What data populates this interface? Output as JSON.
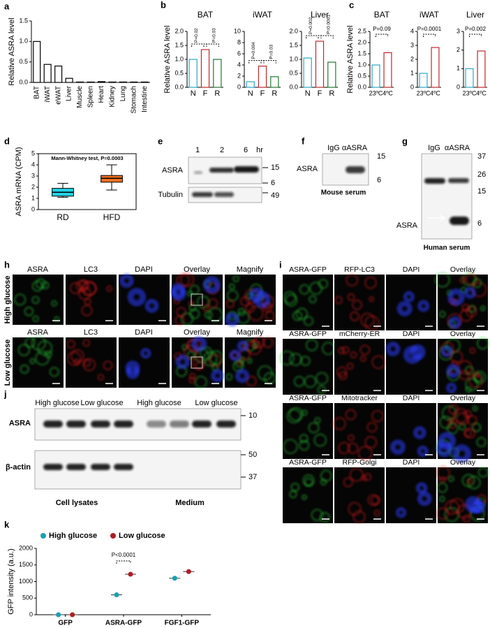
{
  "panel_labels": [
    "a",
    "b",
    "c",
    "d",
    "e",
    "f",
    "g",
    "h",
    "i",
    "j",
    "k"
  ],
  "chart_data": [
    {
      "type": "bar",
      "ylabel": "Relative ASRA level",
      "categories": [
        "BAT",
        "iWAT",
        "eWAT",
        "Liver",
        "Muscle",
        "Spleen",
        "Heart",
        "Kidney",
        "Lung",
        "Stomach",
        "Intestine"
      ],
      "values": [
        1.0,
        0.44,
        0.4,
        0.1,
        0.01,
        0.01,
        0.02,
        0.01,
        0.01,
        0.01,
        0.01
      ],
      "color": "#000000",
      "ylim": [
        0,
        1.5
      ],
      "yticks": [
        {
          "value": 0,
          "label": "0.0"
        },
        0.5,
        {
          "value": 1,
          "label": "1.0"
        },
        1.5
      ]
    },
    {
      "type": "bar",
      "title": "BAT",
      "ylabel": "Relative ASRA level",
      "categories": [
        "N",
        "F",
        "R"
      ],
      "values": [
        1.0,
        1.35,
        1.0
      ],
      "colors": [
        "#29a9c6",
        "#c0272d",
        "#1f7a2e"
      ],
      "ylim": [
        0,
        2
      ],
      "yticks": [
        {
          "value": 0,
          "label": "0.0"
        },
        0.5,
        {
          "value": 1,
          "label": "1.0"
        },
        1.5,
        {
          "value": 2,
          "label": "2.0"
        }
      ],
      "annotations": [
        "P=0.02",
        "P=0.03"
      ]
    },
    {
      "type": "bar",
      "title": "iWAT",
      "categories": [
        "N",
        "F",
        "R"
      ],
      "values": [
        1.0,
        3.8,
        1.9
      ],
      "colors": [
        "#29a9c6",
        "#c0272d",
        "#1f7a2e"
      ],
      "ylim": [
        0,
        10
      ],
      "yticks": [
        0,
        2,
        4,
        6,
        8,
        10
      ],
      "annotations": [
        "P=0.004",
        "P=0.03"
      ]
    },
    {
      "type": "bar",
      "title": "Liver",
      "categories": [
        "N",
        "F",
        "R"
      ],
      "values": [
        1.05,
        1.65,
        0.9
      ],
      "colors": [
        "#29a9c6",
        "#c0272d",
        "#1f7a2e"
      ],
      "ylim": [
        0,
        2
      ],
      "yticks": [
        {
          "value": 0,
          "label": "0.0"
        },
        0.5,
        {
          "value": 1,
          "label": "1.0"
        },
        1.5,
        {
          "value": 2,
          "label": "2.0"
        }
      ],
      "annotations": [
        "P=0.002",
        "P=0.0001"
      ]
    },
    {
      "type": "bar",
      "title": "BAT",
      "ylabel": "Relative ASRA level",
      "categories": [
        "23ºC",
        "4ºC"
      ],
      "values": [
        1.0,
        1.55
      ],
      "colors": [
        "#29a9c6",
        "#c0272d"
      ],
      "ylim": [
        0,
        2.5
      ],
      "yticks": [
        {
          "value": 0,
          "label": "0.0"
        },
        0.5,
        {
          "value": 1,
          "label": "1.0"
        },
        1.5,
        {
          "value": 2,
          "label": "2.0"
        },
        2.5
      ],
      "annotations": [
        "P=0.09"
      ]
    },
    {
      "type": "bar",
      "title": "iWAT",
      "categories": [
        "23ºC",
        "4ºC"
      ],
      "values": [
        1.0,
        2.85
      ],
      "colors": [
        "#29a9c6",
        "#c0272d"
      ],
      "ylim": [
        0,
        4
      ],
      "yticks": [
        0,
        1,
        2,
        3,
        4
      ],
      "annotations": [
        "P=0.0001"
      ]
    },
    {
      "type": "bar",
      "title": "Liver",
      "categories": [
        "23ºC",
        "4ºC"
      ],
      "values": [
        1.0,
        1.95
      ],
      "colors": [
        "#29a9c6",
        "#c0272d"
      ],
      "ylim": [
        0,
        3
      ],
      "yticks": [
        0,
        1,
        2,
        3
      ],
      "annotations": [
        "P=0.002"
      ]
    },
    {
      "type": "box",
      "ylabel": "ASRA mRNA  (CPM)",
      "annotation": "Mann-Whitney test, P=0.0003",
      "categories": [
        "RD",
        "HFD"
      ],
      "boxes": [
        {
          "min": 1.1,
          "q1": 1.2,
          "median": 1.55,
          "q3": 1.9,
          "max": 2.35
        },
        {
          "min": 1.75,
          "q1": 2.45,
          "median": 2.8,
          "q3": 3.05,
          "max": 4.0
        }
      ],
      "colors": [
        "#22d3e6",
        "#f07020"
      ],
      "ylim": [
        0,
        5
      ],
      "yticks": [
        0,
        1,
        2,
        3,
        4,
        5
      ]
    },
    {
      "type": "strip",
      "ylabel": "GFP intensity (a.u.)",
      "annotation": "P<0.0001",
      "categories": [
        "GFP",
        "ASRA-GFP",
        "FGF1-GFP"
      ],
      "series": [
        {
          "name": "High glucose",
          "color": "#1a9fb0",
          "values": [
            0,
            600,
            1100
          ]
        },
        {
          "name": "Low glucose",
          "color": "#b01c22",
          "values": [
            0,
            1220,
            1300
          ]
        }
      ],
      "ylim": [
        0,
        2000
      ],
      "yticks": [
        0,
        500,
        1000,
        1500,
        2000
      ]
    }
  ],
  "e": {
    "lanes": [
      "1",
      "2",
      "6",
      "hr"
    ],
    "rows": [
      "ASRA",
      "Tubulin"
    ],
    "markers": [
      "15",
      "6",
      "49"
    ]
  },
  "f": {
    "headers": [
      "IgG",
      "αASRA"
    ],
    "markers": [
      "15",
      "6"
    ],
    "row": "ASRA",
    "caption": "Mouse serum"
  },
  "g": {
    "headers": [
      "IgG",
      "αASRA"
    ],
    "markers": [
      "37",
      "26",
      "15",
      "6"
    ],
    "row": "ASRA",
    "caption": "Human serum"
  },
  "h": {
    "rows": [
      {
        "label": "High glucose",
        "headers": [
          "ASRA",
          "LC3",
          "DAPI",
          "Overlay",
          "Magnify"
        ]
      },
      {
        "label": "Low glucose",
        "headers": [
          "ASRA",
          "LC3",
          "DAPI",
          "Overlay",
          "Magnify"
        ]
      }
    ]
  },
  "i": {
    "rows": [
      [
        "ASRA-GFP",
        "RFP-LC3",
        "DAPI",
        "Overlay"
      ],
      [
        "ASRA-GFP",
        "mCherry-ER",
        "DAPI",
        "Overlay"
      ],
      [
        "ASRA-GFP",
        "Mitotracker",
        "DAPI",
        "Overlay"
      ],
      [
        "ASRA-GFP",
        "RFP-Golgi",
        "DAPI",
        "Overlay"
      ]
    ]
  },
  "j": {
    "groups": [
      "High glucose",
      "Low glucose",
      "High glucose",
      "Low glucose"
    ],
    "rows": [
      "ASRA",
      "β-actin"
    ],
    "markers": [
      "10",
      "50",
      "37"
    ],
    "captions": [
      "Cell lysates",
      "Medium"
    ]
  }
}
